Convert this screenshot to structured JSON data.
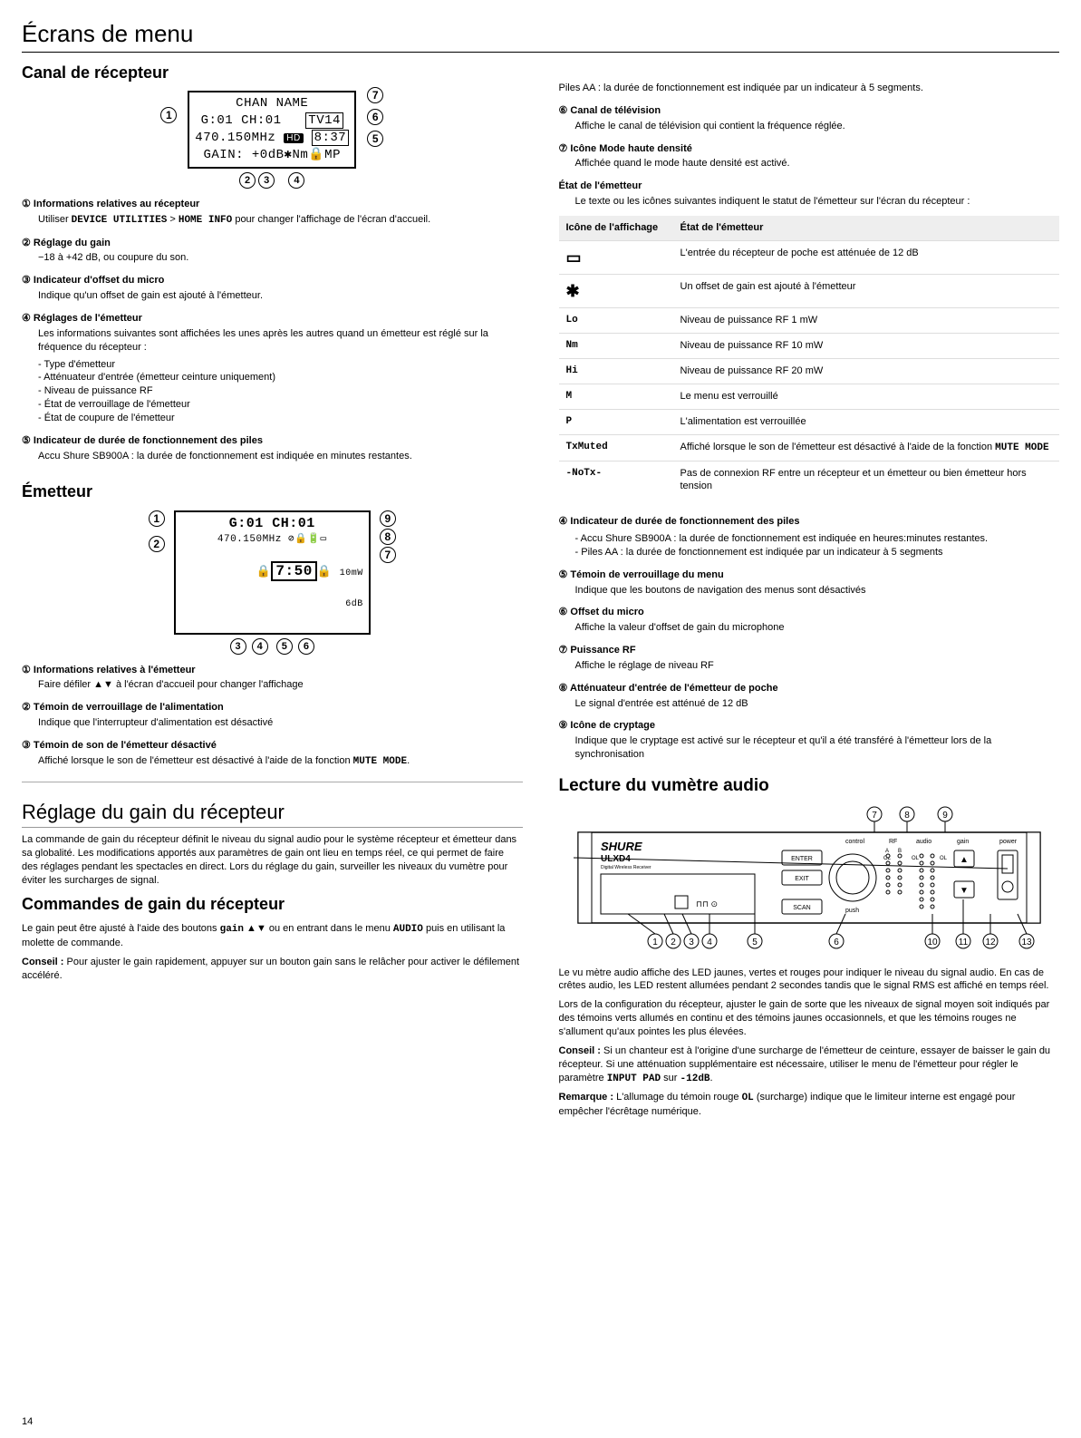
{
  "page_title": "Écrans de menu",
  "page_number": "14",
  "left": {
    "h_receiver": "Canal de récepteur",
    "lcd1": {
      "line1": "CHAN NAME",
      "line2a": "G:01 CH:01",
      "line2b": "TV14",
      "line3a": "470.150MHz",
      "line3b": "HD",
      "line3c": "8:37",
      "line4": "GAIN: +0dB✱Nm🔒MP"
    },
    "items1": [
      {
        "n": "①",
        "t": "Informations relatives au récepteur",
        "b": "Utiliser <span class=\"mono\">DEVICE UTILITIES</span> &gt; <span class=\"mono\">HOME INFO</span> pour changer l'affichage de l'écran d'accueil."
      },
      {
        "n": "②",
        "t": "Réglage du gain",
        "b": "−18 à +42 dB, ou coupure du son."
      },
      {
        "n": "③",
        "t": "Indicateur d'offset du micro",
        "b": "Indique qu'un offset de gain est ajouté à l'émetteur."
      },
      {
        "n": "④",
        "t": "Réglages de l'émetteur",
        "b": "Les informations suivantes sont affichées les unes après les autres quand un émetteur est réglé sur la fréquence du récepteur :",
        "list": [
          "Type d'émetteur",
          "Atténuateur d'entrée (émetteur ceinture uniquement)",
          "Niveau de puissance RF",
          "État de verrouillage de l'émetteur",
          "État de coupure de l'émetteur"
        ]
      },
      {
        "n": "⑤",
        "t": "Indicateur de durée de fonctionnement des piles",
        "b": "Accu Shure SB900A : la durée de fonctionnement est indiquée en minutes restantes."
      }
    ],
    "h_tx": "Émetteur",
    "lcd2": {
      "line1": "G:01 CH:01",
      "line2": "470.150MHz ⊘🔒🔋▭",
      "line3a": "🔒",
      "line3b": "7:50",
      "line3c": "10mW",
      "line3d": "6dB"
    },
    "items2": [
      {
        "n": "①",
        "t": "Informations relatives à l'émetteur",
        "b": "Faire défiler ▲▼ à l'écran d'accueil pour changer l'affichage"
      },
      {
        "n": "②",
        "t": "Témoin de verrouillage de l'alimentation",
        "b": "Indique que l'interrupteur d'alimentation est désactivé"
      },
      {
        "n": "③",
        "t": "Témoin de son de l'émetteur désactivé",
        "b": "Affiché lorsque le son de l'émetteur est désactivé à l'aide de la fonction <span class=\"mono\">MUTE MODE</span>."
      }
    ],
    "h_gain": "Réglage du gain du récepteur",
    "gain_p1": "La commande de gain du récepteur définit le niveau du signal audio pour le système récepteur et émetteur dans sa globalité. Les modifications apportés aux paramètres de gain ont lieu en temps réel, ce qui permet de faire des réglages pendant les spectacles en direct. Lors du réglage du gain, surveiller les niveaux du vumètre pour éviter les surcharges de signal.",
    "h_gain_cmd": "Commandes de gain du récepteur",
    "gain_p2": "Le gain peut être ajusté à l'aide des boutons <span class=\"mono\">gain</span> ▲▼ ou en entrant dans le menu <span class=\"mono\">AUDIO</span> puis en utilisant la molette de commande.",
    "gain_p3": "<b>Conseil :</b> Pour ajuster le gain rapidement, appuyer sur un bouton gain sans le relâcher pour activer le défilement accéléré."
  },
  "right": {
    "top_line": "Piles AA : la durée de fonctionnement est indiquée par un indicateur à 5 segments.",
    "items_top": [
      {
        "n": "⑥",
        "t": "Canal de télévision",
        "b": "Affiche le canal de télévision qui contient la fréquence réglée."
      },
      {
        "n": "⑦",
        "t": "Icône Mode haute densité",
        "b": "Affichée quand le mode haute densité est activé."
      }
    ],
    "tx_state_t": "État de l'émetteur",
    "tx_state_b": "Le texte ou les icônes suivantes indiquent le statut de l'émetteur sur l'écran du récepteur :",
    "table": {
      "h1": "Icône de l'affichage",
      "h2": "État de l'émetteur",
      "rows": [
        {
          "k": "▭",
          "v": "L'entrée du récepteur de poche est atténuée de 12 dB",
          "big": true
        },
        {
          "k": "✱",
          "v": "Un offset de gain est ajouté à l'émetteur",
          "big": true
        },
        {
          "k": "Lo",
          "v": "Niveau de puissance RF 1 mW"
        },
        {
          "k": "Nm",
          "v": "Niveau de puissance RF 10 mW"
        },
        {
          "k": "Hi",
          "v": "Niveau de puissance RF 20 mW"
        },
        {
          "k": "M",
          "v": "Le menu est verrouillé"
        },
        {
          "k": "P",
          "v": "L'alimentation est verrouillée"
        },
        {
          "k": "TxMuted",
          "v": "Affiché lorsque le son de l'émetteur est désactivé à l'aide de la fonction <span class=\"mono\">MUTE MODE</span>"
        },
        {
          "k": "-NoTx-",
          "v": "Pas de connexion RF entre un récepteur et un émetteur ou bien émetteur hors tension"
        }
      ]
    },
    "items_mid": [
      {
        "n": "④",
        "t": "Indicateur de durée de fonctionnement des piles",
        "list": [
          "Accu Shure SB900A : la durée de fonctionnement est indiquée en heures:minutes restantes.",
          "Piles AA : la durée de fonctionnement est indiquée par un indicateur à 5 segments"
        ]
      },
      {
        "n": "⑤",
        "t": "Témoin de verrouillage du menu",
        "b": "Indique que les boutons de navigation des menus sont désactivés"
      },
      {
        "n": "⑥",
        "t": "Offset du micro",
        "b": "Affiche la valeur d'offset de gain du microphone"
      },
      {
        "n": "⑦",
        "t": "Puissance RF",
        "b": "Affiche le réglage de niveau RF"
      },
      {
        "n": "⑧",
        "t": "Atténuateur d'entrée de l'émetteur de poche",
        "b": "Le signal d'entrée est atténué de 12 dB"
      },
      {
        "n": "⑨",
        "t": "Icône de cryptage",
        "b": "Indique que le cryptage est activé sur le récepteur et qu'il a été transféré à l'émetteur lors de la synchronisation"
      }
    ],
    "h_vu": "Lecture du vumètre audio",
    "vu_p1": "Le vu mètre audio affiche des LED jaunes, vertes et rouges pour indiquer le niveau du signal audio. En cas de crêtes audio, les LED restent allumées pendant 2 secondes tandis que le signal RMS est affiché en temps réel.",
    "vu_p2": "Lors de la configuration du récepteur, ajuster le gain de sorte que les niveaux de signal moyen soit indiqués par des témoins verts allumés en continu et des témoins jaunes occasionnels, et que les témoins rouges ne s'allument qu'aux pointes les plus élevées.",
    "vu_p3": "<b>Conseil :</b> Si un chanteur est à l'origine d'une surcharge de l'émetteur de ceinture, essayer de baisser le gain du récepteur. Si une atténuation supplémentaire est nécessaire, utiliser le menu de l'émetteur pour régler le paramètre <span class=\"mono\">INPUT PAD</span> sur <span class=\"mono\">-12dB</span>.",
    "vu_p4": "<b>Remarque :</b> L'allumage du témoin rouge <span class=\"mono\">OL</span> (surcharge) indique que le limiteur interne est engagé pour empêcher l'écrêtage numérique.",
    "receiver": {
      "brand": "SHURE",
      "model": "ULXD4",
      "sub": "Digital Wireless Receiver",
      "btn_enter": "ENTER",
      "btn_exit": "EXIT",
      "btn_scan": "SCAN",
      "lbl_push": "push",
      "lbl_control": "control",
      "lbl_rf": "RF",
      "lbl_audio": "audio",
      "lbl_gain": "gain",
      "lbl_power": "power",
      "lbl_ol": "OL",
      "lbl_a": "A",
      "lbl_b": "B"
    }
  }
}
